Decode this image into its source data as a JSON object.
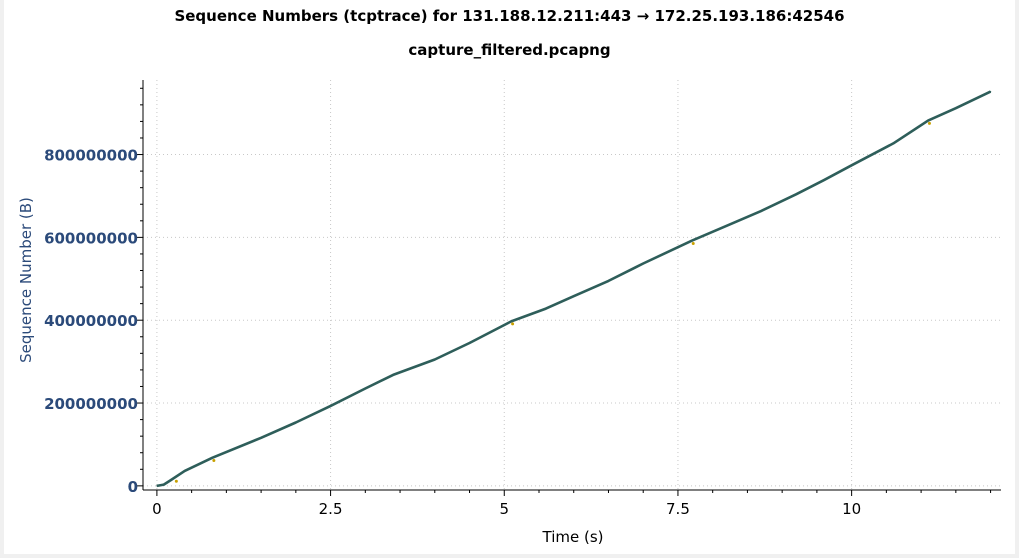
{
  "chart_data": {
    "type": "line",
    "title": "Sequence Numbers (tcptrace) for 131.188.12.211:443 → 172.25.193.186:42546",
    "subtitle": "capture_filtered.pcapng",
    "xlabel": "Time (s)",
    "ylabel": "Sequence Number (B)",
    "xlim": [
      -0.2,
      12.15
    ],
    "ylim": [
      -10000000,
      980000000
    ],
    "x_ticks": [
      0,
      2.5,
      5,
      7.5,
      10
    ],
    "x_tick_labels": [
      "0",
      "2.5",
      "5",
      "7.5",
      "10"
    ],
    "y_ticks": [
      0,
      200000000,
      400000000,
      600000000,
      800000000
    ],
    "y_tick_labels": [
      "0",
      "200000000",
      "400000000",
      "600000000",
      "800000000"
    ],
    "grid": true,
    "legend": "none",
    "series": [
      {
        "color": "#2e5e5a",
        "x": [
          0,
          0.1,
          0.2,
          0.4,
          0.8,
          1.5,
          2.0,
          2.5,
          3.0,
          3.4,
          4.0,
          4.5,
          5.1,
          5.6,
          6.0,
          6.5,
          7.0,
          7.7,
          8.2,
          8.7,
          9.2,
          9.6,
          10.0,
          10.6,
          11.1,
          11.5,
          12.0
        ],
        "y": [
          0,
          3000000,
          14000000,
          36000000,
          68000000,
          116000000,
          153000000,
          193000000,
          235000000,
          268000000,
          305000000,
          345000000,
          397000000,
          428000000,
          458000000,
          495000000,
          537000000,
          592000000,
          628000000,
          664000000,
          704000000,
          738000000,
          774000000,
          827000000,
          882000000,
          912000000,
          952000000
        ]
      }
    ],
    "markers": [
      {
        "color": "#c8a000",
        "x": 0.28,
        "y": 16000000
      },
      {
        "color": "#c8a000",
        "x": 0.82,
        "y": 66000000
      },
      {
        "color": "#c8a000",
        "x": 5.12,
        "y": 396000000
      },
      {
        "color": "#c8a000",
        "x": 7.72,
        "y": 590000000
      },
      {
        "color": "#c8a000",
        "x": 11.12,
        "y": 880000000
      }
    ]
  },
  "colors": {
    "axis_label": "#2b4a7a",
    "line": "#2e5e5a",
    "grid": "#c8c8c8"
  }
}
